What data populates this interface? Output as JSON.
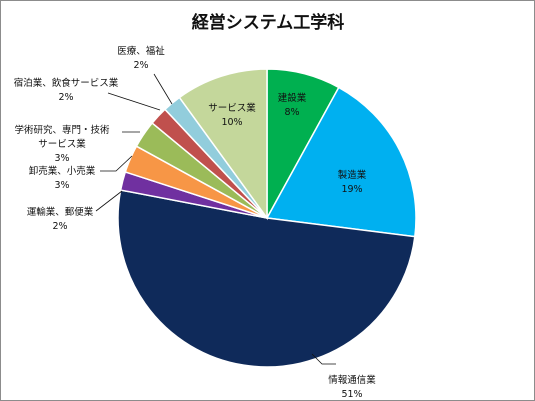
{
  "chart_data": {
    "type": "pie",
    "title": "経営システム工学科",
    "start_angle_deg": 0,
    "direction": "clockwise",
    "slices": [
      {
        "name": "建設業",
        "value": 8,
        "label": "8%",
        "color": "#00b050"
      },
      {
        "name": "製造業",
        "value": 19,
        "label": "19%",
        "color": "#00b0f0"
      },
      {
        "name": "情報通信業",
        "value": 51,
        "label": "51%",
        "color": "#0f2a5a"
      },
      {
        "name": "運輸業、郵便業",
        "value": 2,
        "label": "2%",
        "color": "#7030a0"
      },
      {
        "name": "卸売業、小売業",
        "value": 3,
        "label": "3%",
        "color": "#f79646"
      },
      {
        "name": "学術研究、専門・技術サービス業",
        "value": 3,
        "label": "3%",
        "color": "#9bbb59"
      },
      {
        "name": "宿泊業、飲食サービス業",
        "value": 2,
        "label": "2%",
        "color": "#c0504d"
      },
      {
        "name": "医療、福祉",
        "value": 2,
        "label": "2%",
        "color": "#92cddc"
      },
      {
        "name": "サービス業",
        "value": 10,
        "label": "10%",
        "color": "#c4d79b"
      }
    ]
  }
}
